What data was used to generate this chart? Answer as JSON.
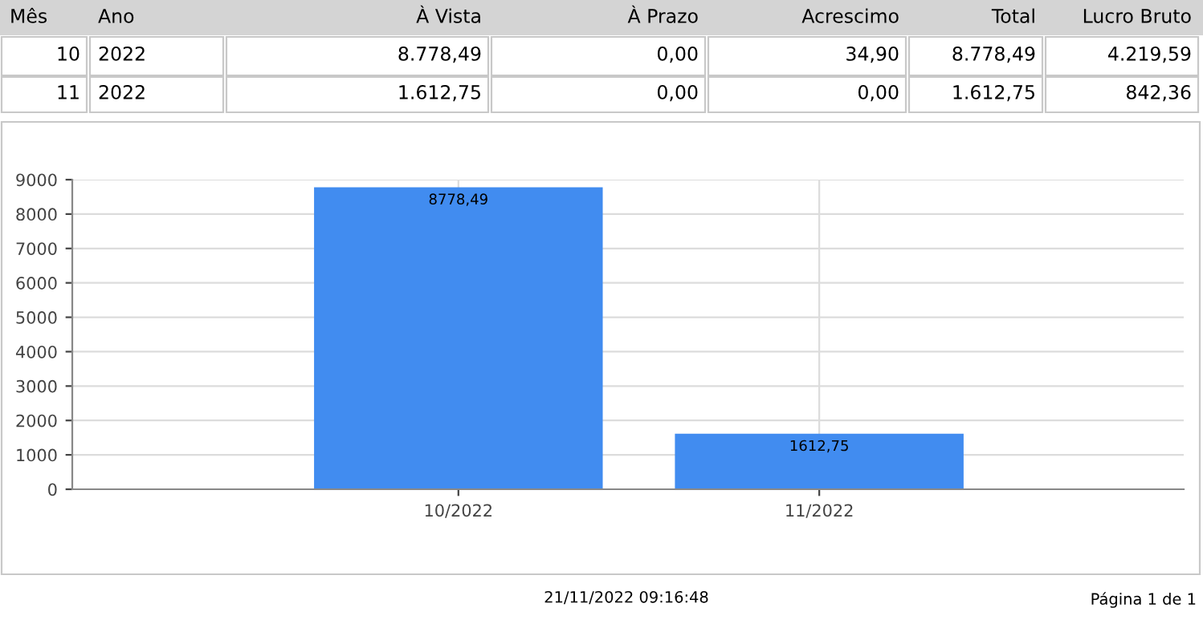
{
  "chart_data": {
    "type": "bar",
    "categories": [
      "10/2022",
      "11/2022"
    ],
    "values": [
      8778.49,
      1612.75
    ],
    "value_labels": [
      "8778,49",
      "1612,75"
    ],
    "color": "#418cf0",
    "ylim": [
      0,
      9000
    ],
    "yticks": [
      0,
      1000,
      2000,
      3000,
      4000,
      5000,
      6000,
      7000,
      8000,
      9000
    ],
    "grid": true,
    "annotations": [
      "Mês",
      "Ano",
      "À Vista",
      "À Prazo",
      "Acrescimo",
      "Total",
      "Lucro Bruto",
      "10",
      "2022",
      "8.778,49",
      "0,00",
      "34,90",
      "8.778,49",
      "4.219,59",
      "11",
      "2022",
      "1.612,75",
      "0,00",
      "0,00",
      "1.612,75",
      "842,36",
      "21/11/2022 09:16:48",
      "Página 1 de 1"
    ]
  }
}
